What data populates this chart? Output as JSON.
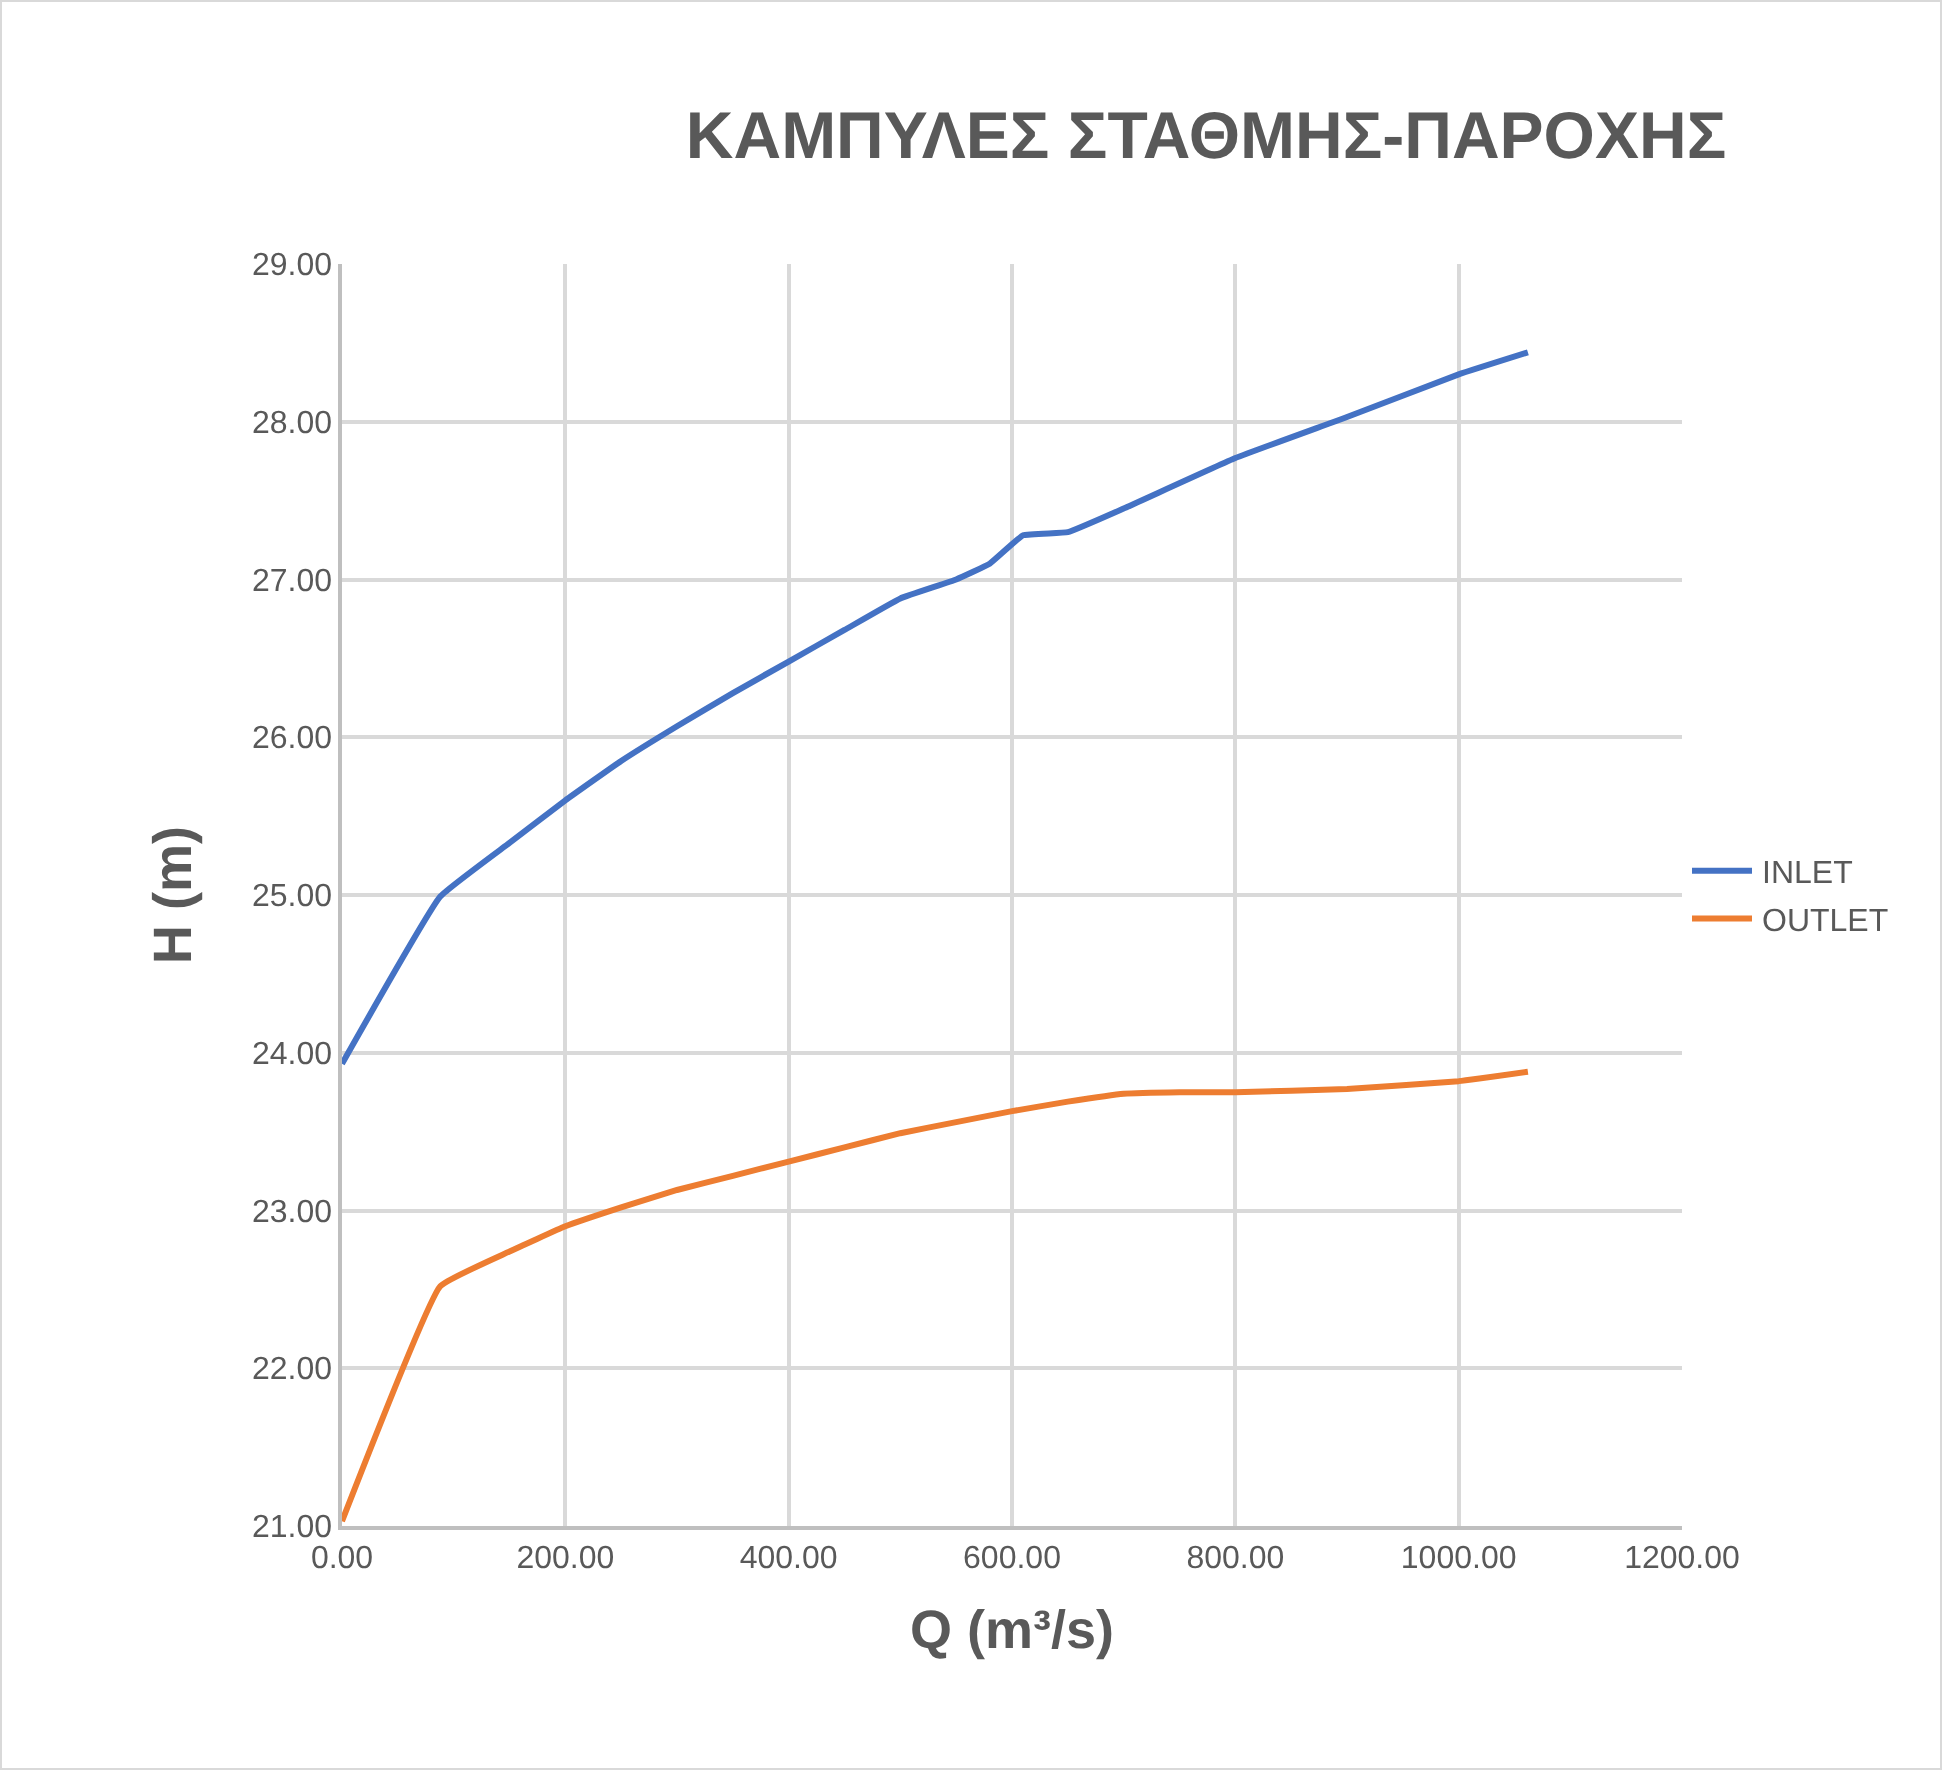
{
  "chart_data": {
    "type": "line",
    "title": "ΚΑΜΠΥΛΕΣ ΣΤΑΘΜΗΣ-ΠΑΡΟΧΗΣ",
    "xlabel": "Q (m³/s)",
    "ylabel": "H (m)",
    "series": [
      {
        "name": "INLET",
        "color": "#4472c4",
        "x": [
          0,
          88,
          150,
          200,
          250,
          300,
          350,
          400,
          450,
          500,
          550,
          580,
          610,
          650,
          700,
          800,
          900,
          1000,
          1062
        ],
        "values": [
          23.93,
          24.99,
          25.33,
          25.6,
          25.85,
          26.07,
          26.28,
          26.48,
          26.68,
          26.88,
          27.0,
          27.1,
          27.28,
          27.3,
          27.45,
          27.77,
          28.03,
          28.3,
          28.44
        ]
      },
      {
        "name": "OUTLET",
        "color": "#ed7d31",
        "x": [
          0,
          88,
          150,
          200,
          250,
          300,
          350,
          400,
          450,
          500,
          550,
          600,
          650,
          700,
          750,
          800,
          900,
          1000,
          1062
        ],
        "values": [
          21.03,
          22.52,
          22.74,
          22.9,
          23.02,
          23.13,
          23.22,
          23.31,
          23.4,
          23.49,
          23.56,
          23.63,
          23.69,
          23.74,
          23.75,
          23.75,
          23.77,
          23.82,
          23.88
        ]
      }
    ],
    "xlim": [
      0,
      1200
    ],
    "xticks": [
      {
        "value": 0,
        "label": "0.00"
      },
      {
        "value": 200,
        "label": "200.00"
      },
      {
        "value": 400,
        "label": "400.00"
      },
      {
        "value": 600,
        "label": "600.00"
      },
      {
        "value": 800,
        "label": "800.00"
      },
      {
        "value": 1000,
        "label": "1000.00"
      },
      {
        "value": 1200,
        "label": "1200.00"
      }
    ],
    "ylim": [
      21,
      29
    ],
    "yticks": [
      {
        "value": 21,
        "label": "21.00"
      },
      {
        "value": 22,
        "label": "22.00"
      },
      {
        "value": 23,
        "label": "23.00"
      },
      {
        "value": 24,
        "label": "24.00"
      },
      {
        "value": 25,
        "label": "25.00"
      },
      {
        "value": 26,
        "label": "26.00"
      },
      {
        "value": 27,
        "label": "27.00"
      },
      {
        "value": 28,
        "label": "28.00"
      },
      {
        "value": 29,
        "label": "29.00"
      }
    ],
    "grid": true,
    "legend": "right",
    "marker": "none",
    "line_style": "solid"
  }
}
